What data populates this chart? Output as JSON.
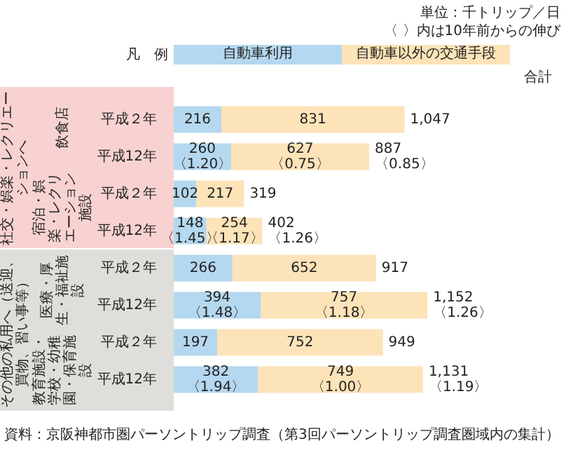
{
  "chart_data": {
    "type": "bar",
    "orientation": "horizontal",
    "stacked": true,
    "title": "単位：千トリップ／日",
    "subtitle": "〈 〉内は10年前からの伸び",
    "legend_title": "凡　例",
    "legend": "top",
    "tick_labels": "y",
    "categories": [
      "平成２年",
      "平成12年",
      "平成２年",
      "平成12年",
      "平成２年",
      "平成12年",
      "平成２年",
      "平成12年"
    ],
    "series": [
      {
        "name": "自動車利用",
        "color": "#b4d8ef",
        "values": [
          216,
          260,
          102,
          148,
          266,
          394,
          197,
          382
        ],
        "value_labels": [
          "216",
          "260\n〈1.20〉",
          "102",
          "148\n〈1.45〉",
          "266",
          "394\n〈1.48〉",
          "197",
          "382\n〈1.94〉"
        ]
      },
      {
        "name": "自動車以外の交通手段",
        "color": "#fde3b8",
        "values": [
          831,
          627,
          217,
          254,
          652,
          757,
          752,
          749
        ],
        "value_labels": [
          "831",
          "627\n〈0.75〉",
          "217",
          "254\n〈1.17〉",
          "652",
          "757\n〈1.18〉",
          "752",
          "749\n〈1.00〉"
        ]
      }
    ],
    "totals": [
      "1,047",
      "887\n〈0.85〉",
      "319",
      "402\n〈1.26〉",
      "917",
      "1,152\n〈1.26〉",
      "949",
      "1,131\n〈1.19〉"
    ],
    "annotations": [
      "合計",
      "社交・娯楽・レクリエーションへ",
      "飲食店",
      "宿泊・娯楽・レクリエーション施設",
      "その他の私用へ（送迎、買物、習い事等）",
      "医療・厚生・福祉施設",
      "教育施設・学校・幼稚園・保育施設",
      "資料：京阪神都市圏パーソントリップ調査（第3回パーソントリップ調査圏域内の集計）"
    ]
  }
}
